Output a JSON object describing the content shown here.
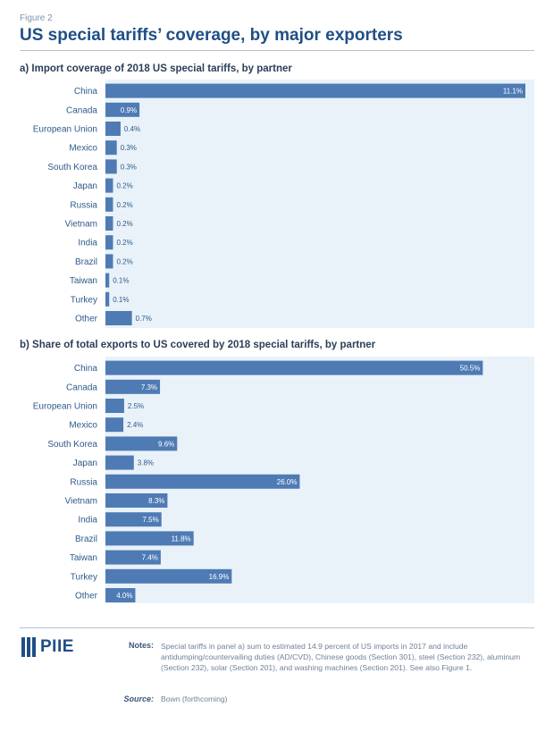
{
  "figure_label": "Figure 2",
  "title": "US special tariffs’ coverage, by major exporters",
  "chart_data": [
    {
      "type": "bar",
      "orientation": "horizontal",
      "title": "a) Import coverage of 2018 US special tariffs, by partner",
      "categories": [
        "China",
        "Canada",
        "European Union",
        "Mexico",
        "South Korea",
        "Japan",
        "Russia",
        "Vietnam",
        "India",
        "Brazil",
        "Taiwan",
        "Turkey",
        "Other"
      ],
      "values": [
        11.1,
        0.9,
        0.4,
        0.3,
        0.3,
        0.2,
        0.2,
        0.2,
        0.2,
        0.2,
        0.1,
        0.1,
        0.7
      ],
      "value_labels": [
        "11.1%",
        "0.9%",
        "0.4%",
        "0.3%",
        "0.3%",
        "0.2%",
        "0.2%",
        "0.2%",
        "0.2%",
        "0.2%",
        "0.1%",
        "0.1%",
        "0.7%"
      ],
      "unit": "%",
      "xlim": [
        0,
        11.1
      ],
      "bar_color": "#4f7bb5",
      "background_color": "#e9f2f9"
    },
    {
      "type": "bar",
      "orientation": "horizontal",
      "title": "b) Share of total exports to US covered by 2018 special tariffs, by partner",
      "categories": [
        "China",
        "Canada",
        "European Union",
        "Mexico",
        "South Korea",
        "Japan",
        "Russia",
        "Vietnam",
        "India",
        "Brazil",
        "Taiwan",
        "Turkey",
        "Other"
      ],
      "values": [
        50.5,
        7.3,
        2.5,
        2.4,
        9.6,
        3.8,
        26.0,
        8.3,
        7.5,
        11.8,
        7.4,
        16.9,
        4.0
      ],
      "value_labels": [
        "50.5%",
        "7.3%",
        "2.5%",
        "2.4%",
        "9.6%",
        "3.8%",
        "26.0%",
        "8.3%",
        "7.5%",
        "11.8%",
        "7.4%",
        "16.9%",
        "4.0%"
      ],
      "unit": "%",
      "xlim": [
        0,
        56.2
      ],
      "bar_color": "#4f7bb5",
      "background_color": "#e9f2f9"
    }
  ],
  "footer": {
    "logo_text": "PIIE",
    "notes_label": "Notes:",
    "notes_text": "Special tariffs in panel a) sum to estimated 14.9 percent of US imports in 2017 and include antidumping/countervailing duties (AD/CVD), Chinese goods (Section 301), steel (Section 232), aluminum (Section 232), solar (Section 201), and washing machines (Section 201). See also Figure 1.",
    "source_label": "Source:",
    "source_text": "Bown (forthcoming)"
  }
}
